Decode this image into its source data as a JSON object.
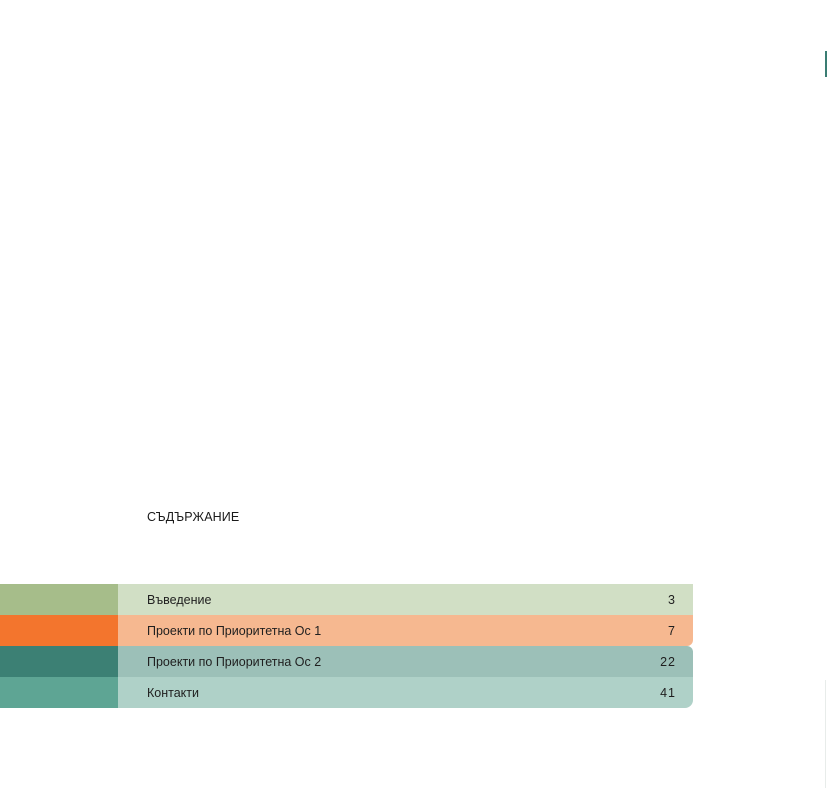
{
  "toc": {
    "title": "СЪДЪРЖАНИЕ",
    "entries": [
      {
        "label": "Въведение",
        "page": "3",
        "tab_color": "#a6bd8a",
        "bar_color": "#d1dfc5"
      },
      {
        "label": "Проекти по Приоритетна Ос 1",
        "page": "7",
        "tab_color": "#f3752d",
        "bar_color": "#f6b890"
      },
      {
        "label": "Проекти по Приоритетна Ос 2",
        "page": "22",
        "tab_color": "#3c8074",
        "bar_color": "#9cc0b8"
      },
      {
        "label": "Контакти",
        "page": "41",
        "tab_color": "#5ea594",
        "bar_color": "#afd1c8"
      }
    ]
  },
  "accent": "#3a7d73"
}
